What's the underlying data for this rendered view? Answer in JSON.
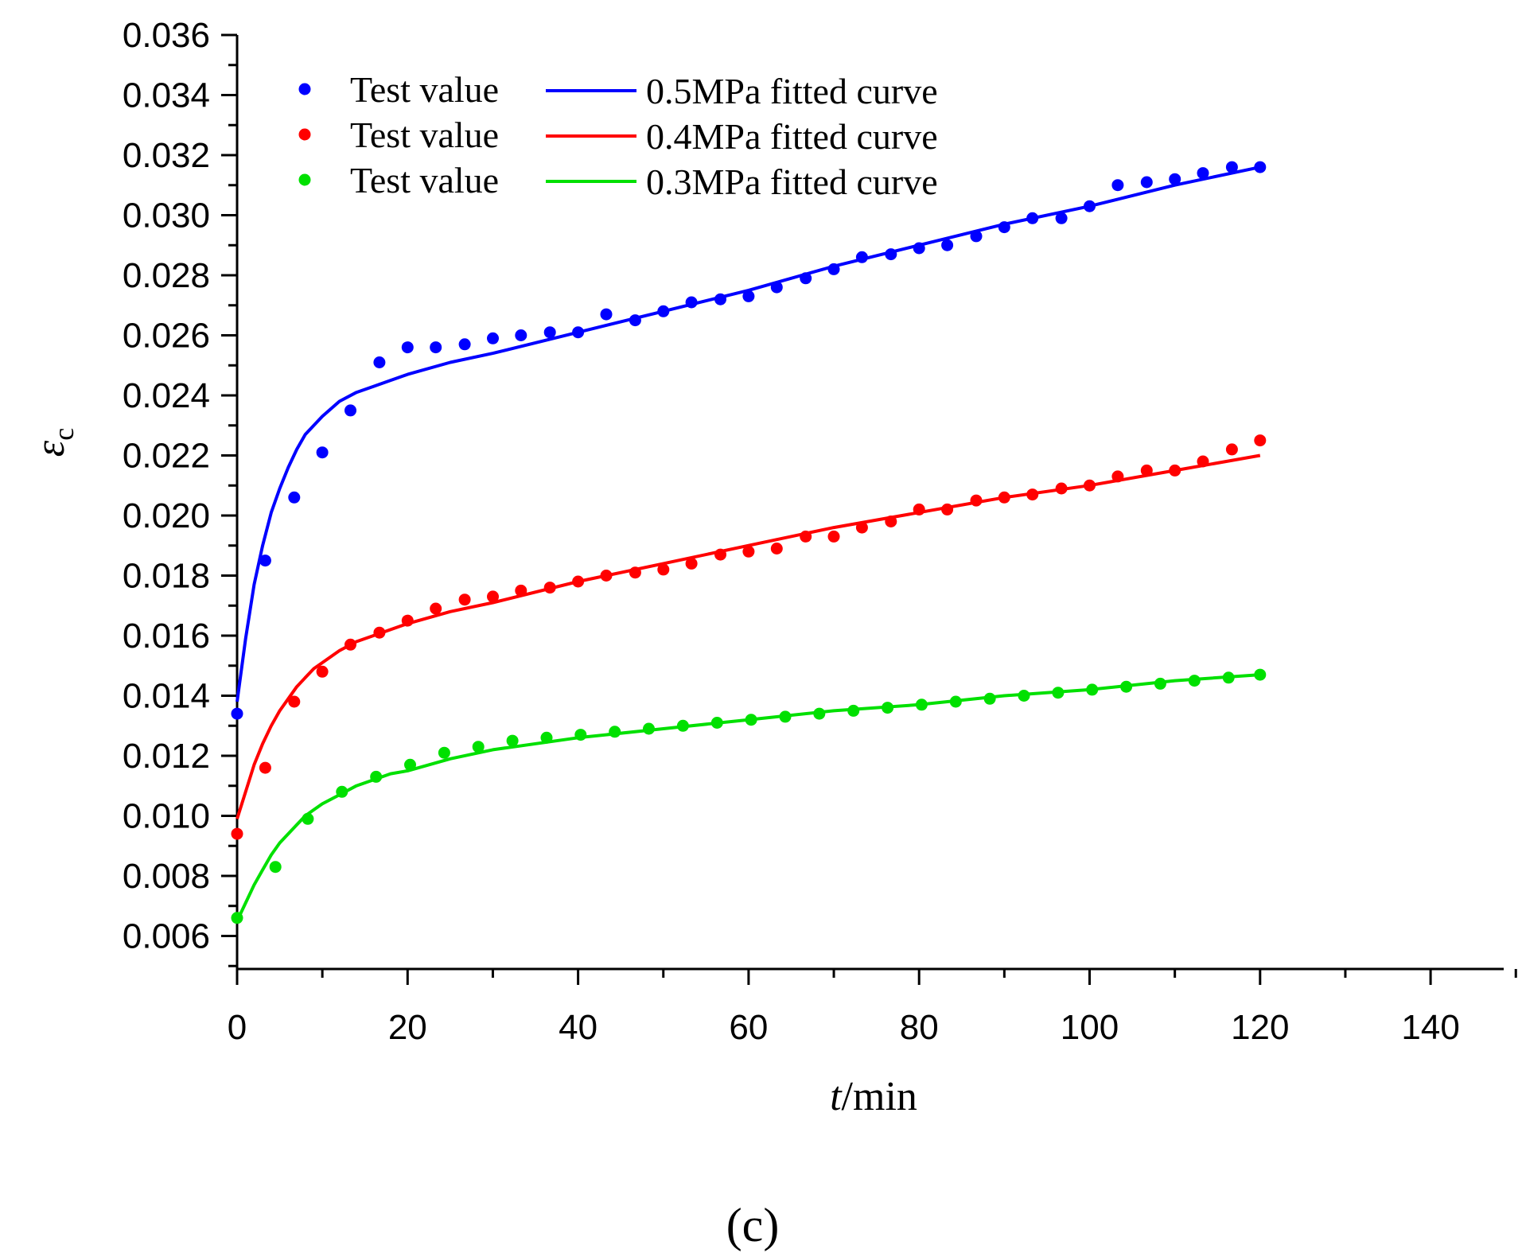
{
  "chart_data": {
    "type": "scatter",
    "panel_label": "(c)",
    "xlabel": {
      "italic": "t",
      "rest": "/min"
    },
    "ylabel": {
      "symbol": "ε",
      "subscript": "c"
    },
    "xlim": [
      0,
      150
    ],
    "ylim": [
      0.005,
      0.036
    ],
    "xticks": [
      0,
      20,
      40,
      60,
      80,
      100,
      120,
      140
    ],
    "xtick_labels": [
      "0",
      "20",
      "40",
      "60",
      "80",
      "100",
      "120",
      "140"
    ],
    "yticks": [
      0.006,
      0.008,
      0.01,
      0.012,
      0.014,
      0.016,
      0.018,
      0.02,
      0.022,
      0.024,
      0.026,
      0.028,
      0.03,
      0.032,
      0.034,
      0.036
    ],
    "ytick_labels": [
      "0.006",
      "0.008",
      "0.010",
      "0.012",
      "0.014",
      "0.016",
      "0.018",
      "0.020",
      "0.022",
      "0.024",
      "0.026",
      "0.028",
      "0.030",
      "0.032",
      "0.034",
      "0.036"
    ],
    "legend_position": "top-left",
    "series": [
      {
        "pressure": "0.5MPa",
        "color": "#0000ff",
        "points_label": "Test value",
        "curve_label": "0.5MPa fitted curve",
        "points": {
          "x": [
            0,
            3.3,
            6.7,
            10,
            13.3,
            16.7,
            20,
            23.3,
            26.7,
            30,
            33.3,
            36.7,
            40,
            43.3,
            46.7,
            50,
            53.3,
            56.7,
            60,
            63.3,
            66.7,
            70,
            73.3,
            76.7,
            80,
            83.3,
            86.7,
            90,
            93.3,
            96.7,
            100,
            103.3,
            106.7,
            110,
            113.3,
            116.7,
            120
          ],
          "y": [
            0.0134,
            0.0185,
            0.0206,
            0.0221,
            0.0235,
            0.0251,
            0.0256,
            0.0256,
            0.0257,
            0.0259,
            0.026,
            0.0261,
            0.0261,
            0.0267,
            0.0265,
            0.0268,
            0.0271,
            0.0272,
            0.0273,
            0.0276,
            0.0279,
            0.0282,
            0.0286,
            0.0287,
            0.0289,
            0.029,
            0.0293,
            0.0296,
            0.0299,
            0.0299,
            0.0303,
            0.031,
            0.0311,
            0.0312,
            0.0314,
            0.0316,
            0.0316
          ]
        },
        "curve": {
          "x": [
            0,
            1,
            2,
            3,
            4,
            5,
            6,
            7,
            8,
            9,
            10,
            12,
            14,
            16,
            18,
            20,
            25,
            30,
            40,
            50,
            60,
            70,
            80,
            90,
            100,
            110,
            120
          ],
          "y": [
            0.0138,
            0.0159,
            0.0177,
            0.019,
            0.0201,
            0.0209,
            0.0216,
            0.0222,
            0.0227,
            0.023,
            0.0233,
            0.0238,
            0.0241,
            0.0243,
            0.0245,
            0.0247,
            0.0251,
            0.0254,
            0.0261,
            0.0268,
            0.0275,
            0.0283,
            0.029,
            0.0297,
            0.0303,
            0.031,
            0.0316
          ]
        }
      },
      {
        "pressure": "0.4MPa",
        "color": "#ff0000",
        "points_label": "Test value",
        "curve_label": "0.4MPa fitted curve",
        "points": {
          "x": [
            0,
            3.3,
            6.7,
            10,
            13.3,
            16.7,
            20,
            23.3,
            26.7,
            30,
            33.3,
            36.7,
            40,
            43.3,
            46.7,
            50,
            53.3,
            56.7,
            60,
            63.3,
            66.7,
            70,
            73.3,
            76.7,
            80,
            83.3,
            86.7,
            90,
            93.3,
            96.7,
            100,
            103.3,
            106.7,
            110,
            113.3,
            116.7,
            120
          ],
          "y": [
            0.0094,
            0.0116,
            0.0138,
            0.0148,
            0.0157,
            0.0161,
            0.0165,
            0.0169,
            0.0172,
            0.0173,
            0.0175,
            0.0176,
            0.0178,
            0.018,
            0.0181,
            0.0182,
            0.0184,
            0.0187,
            0.0188,
            0.0189,
            0.0193,
            0.0193,
            0.0196,
            0.0198,
            0.0202,
            0.0202,
            0.0205,
            0.0206,
            0.0207,
            0.0209,
            0.021,
            0.0213,
            0.0215,
            0.0215,
            0.0218,
            0.0222,
            0.0225
          ]
        },
        "curve": {
          "x": [
            0,
            1,
            2,
            3,
            4,
            5,
            6,
            7,
            8,
            9,
            10,
            12,
            14,
            16,
            18,
            20,
            25,
            30,
            40,
            50,
            60,
            70,
            80,
            90,
            100,
            110,
            120
          ],
          "y": [
            0.0099,
            0.0108,
            0.0117,
            0.0124,
            0.013,
            0.0135,
            0.0139,
            0.0143,
            0.0146,
            0.0149,
            0.0151,
            0.0155,
            0.0158,
            0.016,
            0.0162,
            0.0164,
            0.0168,
            0.0171,
            0.0178,
            0.0184,
            0.019,
            0.0196,
            0.0201,
            0.0206,
            0.021,
            0.0215,
            0.022
          ]
        }
      },
      {
        "pressure": "0.3MPa",
        "color": "#00e000",
        "points_label": "Test value",
        "curve_label": "0.3MPa fitted curve",
        "points": {
          "x": [
            0,
            4.5,
            8.3,
            12.3,
            16.3,
            20.3,
            24.3,
            28.3,
            32.3,
            36.3,
            40.3,
            44.3,
            48.3,
            52.3,
            56.3,
            60.3,
            64.3,
            68.3,
            72.3,
            76.3,
            80.3,
            84.3,
            88.3,
            92.3,
            96.3,
            100.3,
            104.3,
            108.3,
            112.3,
            116.3,
            120
          ],
          "y": [
            0.0066,
            0.0083,
            0.0099,
            0.0108,
            0.0113,
            0.0117,
            0.0121,
            0.0123,
            0.0125,
            0.0126,
            0.0127,
            0.0128,
            0.0129,
            0.013,
            0.0131,
            0.0132,
            0.0133,
            0.0134,
            0.0135,
            0.0136,
            0.0137,
            0.0138,
            0.0139,
            0.014,
            0.0141,
            0.0142,
            0.0143,
            0.0144,
            0.0145,
            0.0146,
            0.0147
          ]
        },
        "curve": {
          "x": [
            0,
            1,
            2,
            3,
            4,
            5,
            6,
            7,
            8,
            9,
            10,
            12,
            14,
            16,
            18,
            20,
            25,
            30,
            40,
            50,
            60,
            70,
            80,
            90,
            100,
            110,
            120
          ],
          "y": [
            0.0065,
            0.0071,
            0.0077,
            0.0082,
            0.0087,
            0.0091,
            0.0094,
            0.0097,
            0.01,
            0.0102,
            0.0104,
            0.0107,
            0.011,
            0.0112,
            0.0114,
            0.0115,
            0.0119,
            0.0122,
            0.0126,
            0.0129,
            0.0132,
            0.0135,
            0.0137,
            0.014,
            0.0142,
            0.0145,
            0.0147
          ]
        }
      }
    ]
  }
}
